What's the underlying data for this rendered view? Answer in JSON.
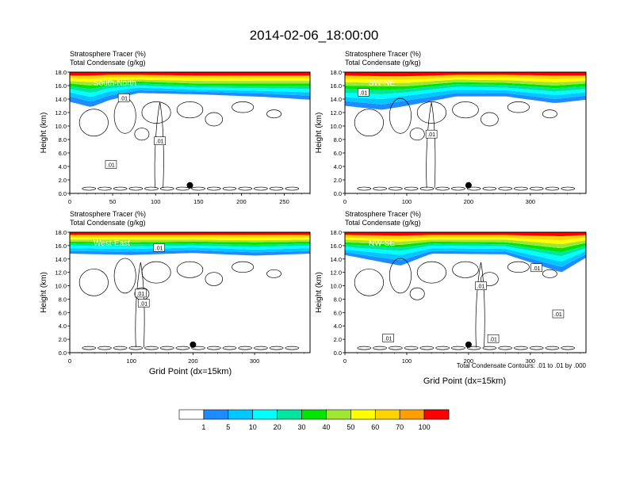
{
  "chart_data": {
    "type": "heatmap",
    "title": "2014-02-06_18:00:00",
    "field_labels": [
      "Stratosphere Tracer   (%)",
      "Total Condensate   (g/kg)"
    ],
    "ylabel": "Height (km)",
    "xlabel": "Grid Point (dx=15km)",
    "ylim": [
      0,
      18
    ],
    "yticks": [
      "0.0",
      "2.0",
      "4.0",
      "6.0",
      "8.0",
      "10.0",
      "12.0",
      "14.0",
      "16.0",
      "18.0"
    ],
    "contour_note": "Total Condensate Contours: .01 to .01 by .000",
    "panels": [
      {
        "name": "South-North",
        "xlim": [
          0,
          280
        ],
        "xticks": [
          0,
          50,
          100,
          150,
          200,
          250
        ],
        "contour_labels": [
          {
            "x": 63,
            "y": 14.2,
            "text": ".01"
          },
          {
            "x": 105,
            "y": 7.8,
            "text": ".01"
          },
          {
            "x": 48,
            "y": 4.3,
            "text": ".01"
          }
        ],
        "marker_x": 140,
        "bands": [
          {
            "x": 0,
            "b": [
              13.6,
              14.4,
              15.0,
              15.5,
              15.9,
              16.3,
              16.7,
              17.1,
              17.5
            ]
          },
          {
            "x": 25,
            "b": [
              12.8,
              13.6,
              14.3,
              14.9,
              15.5,
              16.0,
              16.5,
              17.0,
              17.5
            ]
          },
          {
            "x": 45,
            "b": [
              13.8,
              14.5,
              15.1,
              15.6,
              16.0,
              16.4,
              16.8,
              17.2,
              17.6
            ]
          },
          {
            "x": 80,
            "b": [
              14.9,
              15.3,
              15.7,
              16.0,
              16.3,
              16.6,
              16.9,
              17.2,
              17.6
            ]
          },
          {
            "x": 150,
            "b": [
              14.7,
              15.1,
              15.4,
              15.7,
              16.0,
              16.3,
              16.7,
              17.1,
              17.5
            ]
          },
          {
            "x": 230,
            "b": [
              14.3,
              14.8,
              15.2,
              15.6,
              15.9,
              16.3,
              16.7,
              17.1,
              17.5
            ]
          },
          {
            "x": 280,
            "b": [
              13.9,
              14.5,
              15.0,
              15.5,
              15.9,
              16.3,
              16.7,
              17.1,
              17.5
            ]
          }
        ]
      },
      {
        "name": "SW-NE",
        "xlim": [
          0,
          390
        ],
        "xticks": [
          0,
          100,
          200,
          300
        ],
        "contour_labels": [
          {
            "x": 30,
            "y": 15.0,
            "text": ".01"
          },
          {
            "x": 140,
            "y": 8.8,
            "text": ".01"
          }
        ],
        "marker_x": 200,
        "bands": [
          {
            "x": 0,
            "b": [
              13.0,
              13.7,
              14.3,
              14.9,
              15.5,
              16.0,
              16.5,
              17.0,
              17.5
            ]
          },
          {
            "x": 60,
            "b": [
              12.4,
              13.2,
              14.0,
              14.7,
              15.3,
              15.9,
              16.4,
              16.9,
              17.4
            ]
          },
          {
            "x": 100,
            "b": [
              13.0,
              13.8,
              14.5,
              15.0,
              15.5,
              15.9,
              16.4,
              16.9,
              17.4
            ]
          },
          {
            "x": 180,
            "b": [
              14.4,
              14.9,
              15.4,
              15.8,
              16.2,
              16.5,
              16.9,
              17.2,
              17.6
            ]
          },
          {
            "x": 260,
            "b": [
              14.4,
              14.9,
              15.3,
              15.7,
              16.1,
              16.4,
              16.8,
              17.2,
              17.6
            ]
          },
          {
            "x": 340,
            "b": [
              13.4,
              14.0,
              14.6,
              15.1,
              15.6,
              16.0,
              16.5,
              17.0,
              17.5
            ]
          },
          {
            "x": 390,
            "b": [
              13.9,
              14.5,
              15.0,
              15.5,
              15.9,
              16.3,
              16.7,
              17.1,
              17.5
            ]
          }
        ]
      },
      {
        "name": "West-East",
        "xlim": [
          0,
          390
        ],
        "xticks": [
          0,
          100,
          200,
          300
        ],
        "contour_labels": [
          {
            "x": 145,
            "y": 15.7,
            "text": ".01"
          },
          {
            "x": 115,
            "y": 8.9,
            "text": ".01"
          },
          {
            "x": 120,
            "y": 7.4,
            "text": ".01"
          }
        ],
        "marker_x": 200,
        "bands": [
          {
            "x": 0,
            "b": [
              14.8,
              15.2,
              15.6,
              16.0,
              16.3,
              16.6,
              16.9,
              17.2,
              17.6
            ]
          },
          {
            "x": 100,
            "b": [
              14.6,
              15.1,
              15.5,
              15.9,
              16.2,
              16.5,
              16.9,
              17.2,
              17.6
            ]
          },
          {
            "x": 200,
            "b": [
              14.9,
              15.3,
              15.7,
              16.0,
              16.3,
              16.6,
              16.9,
              17.2,
              17.6
            ]
          },
          {
            "x": 300,
            "b": [
              14.5,
              15.0,
              15.4,
              15.8,
              16.1,
              16.5,
              16.8,
              17.2,
              17.6
            ]
          },
          {
            "x": 390,
            "b": [
              14.8,
              15.2,
              15.6,
              16.0,
              16.3,
              16.6,
              16.9,
              17.2,
              17.6
            ]
          }
        ]
      },
      {
        "name": "NW-SE",
        "xlim": [
          0,
          390
        ],
        "xticks": [
          0,
          100,
          200,
          300
        ],
        "contour_labels": [
          {
            "x": 310,
            "y": 12.7,
            "text": ".01"
          },
          {
            "x": 220,
            "y": 10.0,
            "text": ".01"
          },
          {
            "x": 345,
            "y": 5.8,
            "text": ".01"
          },
          {
            "x": 70,
            "y": 2.2,
            "text": ".01"
          },
          {
            "x": 240,
            "y": 2.1,
            "text": ".01"
          }
        ],
        "marker_x": 200,
        "bands": [
          {
            "x": 0,
            "b": [
              14.6,
              15.0,
              15.4,
              15.8,
              16.2,
              16.5,
              16.9,
              17.2,
              17.6
            ]
          },
          {
            "x": 90,
            "b": [
              13.0,
              13.8,
              14.6,
              15.2,
              15.7,
              16.1,
              16.6,
              17.0,
              17.5
            ]
          },
          {
            "x": 140,
            "b": [
              14.8,
              15.2,
              15.6,
              16.0,
              16.3,
              16.6,
              16.9,
              17.2,
              17.6
            ]
          },
          {
            "x": 260,
            "b": [
              14.7,
              15.1,
              15.5,
              15.9,
              16.2,
              16.5,
              16.9,
              17.2,
              17.6
            ]
          },
          {
            "x": 350,
            "b": [
              12.0,
              12.8,
              13.6,
              14.4,
              15.0,
              15.6,
              16.2,
              16.8,
              17.4
            ]
          },
          {
            "x": 390,
            "b": [
              14.2,
              14.7,
              15.2,
              15.6,
              16.0,
              16.4,
              16.8,
              17.2,
              17.6
            ]
          }
        ]
      }
    ],
    "colorbar": {
      "labels": [
        "1",
        "5",
        "10",
        "20",
        "30",
        "40",
        "50",
        "60",
        "70",
        "100"
      ],
      "colors": [
        "#ffffff",
        "#1e8cff",
        "#00c8ff",
        "#00ffff",
        "#00e6a0",
        "#00e600",
        "#a0e632",
        "#ffff00",
        "#ffd200",
        "#ffa000",
        "#ff6400",
        "#ff0000"
      ]
    }
  }
}
